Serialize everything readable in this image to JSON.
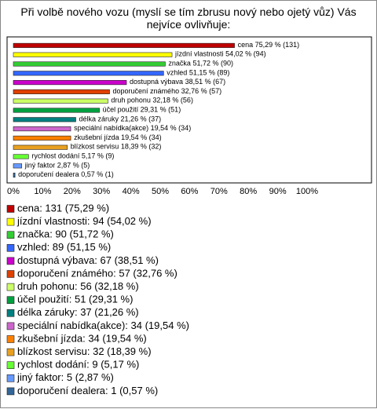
{
  "chart_data": {
    "type": "bar",
    "orientation": "horizontal",
    "title": "Při volbě nového vozu (myslí se tím zbrusu nový nebo ojetý vůz) Vás nejvíce ovlivňuje:",
    "categories": [
      "cena",
      "jízdní vlastnosti",
      "značka",
      "vzhled",
      "dostupná výbava",
      "doporučení známého",
      "druh pohonu",
      "účel použití",
      "délka záruky",
      "speciální nabídka(akce)",
      "zkušební jízda",
      "blízkost servisu",
      "rychlost dodání",
      "jiný faktor",
      "doporučení dealera"
    ],
    "values": [
      75.29,
      54.02,
      51.72,
      51.15,
      38.51,
      32.76,
      32.18,
      29.31,
      21.26,
      19.54,
      19.54,
      18.39,
      5.17,
      2.87,
      0.57
    ],
    "value_labels": [
      "75,29 % (131)",
      "54,02 % (94)",
      "51,72 % (90)",
      "51,15 % (89)",
      "38,51 % (67)",
      "32,76 % (57)",
      "32,18 % (56)",
      "29,31 % (51)",
      "21,26 % (37)",
      "19,54 % (34)",
      "19,54 % (34)",
      "18,39 % (32)",
      "5,17 % (9)",
      "2,87 % (5)",
      "0,57 % (1)"
    ],
    "legend_labels": [
      "cena: 131 (75,29 %)",
      "jízdní vlastnosti: 94 (54,02 %)",
      "značka: 90 (51,72 %)",
      "vzhled: 89 (51,15 %)",
      "dostupná výbava: 67 (38,51 %)",
      "doporučení známého: 57 (32,76 %)",
      "druh pohonu: 56 (32,18 %)",
      "účel použití: 51 (29,31 %)",
      "délka záruky: 37 (21,26 %)",
      "speciální nabídka(akce): 34 (19,54 %)",
      "zkušební jízda: 34 (19,54 %)",
      "blízkost servisu: 32 (18,39 %)",
      "rychlost dodání: 9 (5,17 %)",
      "jiný faktor: 5 (2,87 %)",
      "doporučení dealera: 1 (0,57 %)"
    ],
    "colors": [
      "#c00000",
      "#ffff00",
      "#33cc33",
      "#3366ff",
      "#cc00cc",
      "#e04000",
      "#ccff66",
      "#00a040",
      "#008080",
      "#cc66cc",
      "#ff8000",
      "#e8a020",
      "#66ff33",
      "#6699ff",
      "#336699"
    ],
    "xlim": [
      0,
      100
    ],
    "xticks": [
      {
        "value": 0,
        "label": "0%"
      },
      {
        "value": 10,
        "label": "10%"
      },
      {
        "value": 20,
        "label": "20%"
      },
      {
        "value": 30,
        "label": "30%"
      },
      {
        "value": 40,
        "label": "40%"
      },
      {
        "value": 50,
        "label": "50%"
      },
      {
        "value": 60,
        "label": "60%"
      },
      {
        "value": 70,
        "label": "70%"
      },
      {
        "value": 80,
        "label": "80%"
      },
      {
        "value": 90,
        "label": "90%"
      },
      {
        "value": 100,
        "label": "100%"
      }
    ]
  }
}
